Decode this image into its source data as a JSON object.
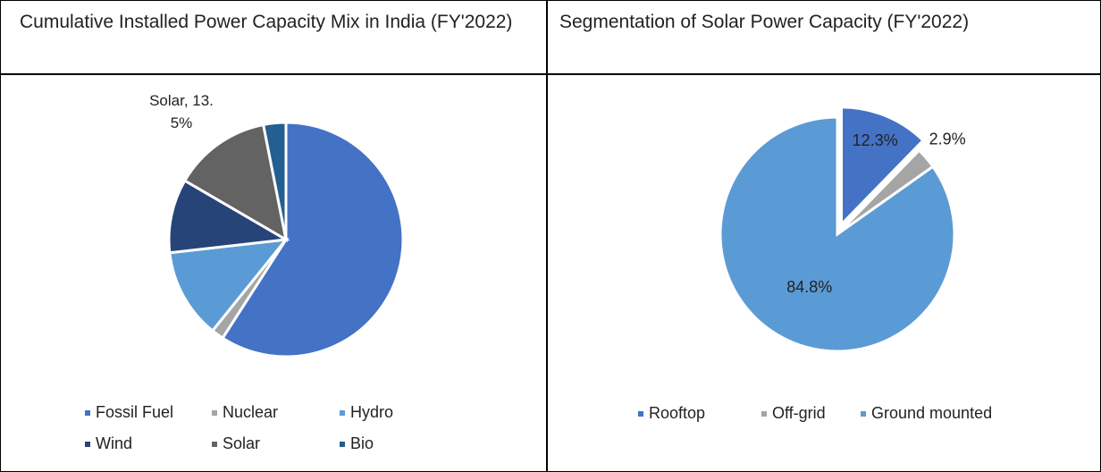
{
  "chart_data": [
    {
      "type": "pie",
      "title": "Cumulative Installed Power Capacity Mix in India (FY'2022)",
      "categories": [
        "Fossil Fuel",
        "Nuclear",
        "Hydro",
        "Wind",
        "Solar",
        "Bio"
      ],
      "values": [
        59.1,
        1.7,
        12.4,
        10.2,
        13.5,
        3.1
      ],
      "value_labels": [
        null,
        null,
        null,
        null,
        "Solar, 13.5%",
        null
      ],
      "colors": [
        "#4472c4",
        "#a5a5a5",
        "#5b9bd5",
        "#264478",
        "#636363",
        "#255e91"
      ],
      "legend": "bottom"
    },
    {
      "type": "pie",
      "title": "Segmentation of Solar Power Capacity (FY'2022)",
      "categories": [
        "Rooftop",
        "Off-grid",
        "Ground mounted"
      ],
      "values": [
        12.3,
        2.9,
        84.8
      ],
      "value_labels": [
        "12.3%",
        "2.9%",
        "84.8%"
      ],
      "colors": [
        "#4472c4",
        "#a5a5a5",
        "#5b9bd5"
      ],
      "legend": "bottom"
    }
  ]
}
